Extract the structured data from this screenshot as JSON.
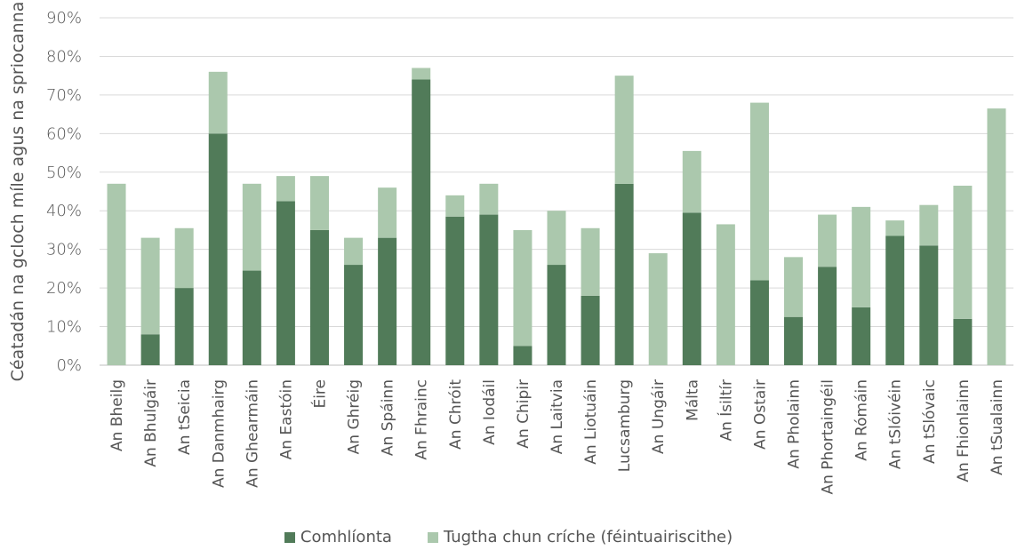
{
  "chart_data": {
    "type": "bar",
    "stacked": true,
    "ylabel": "Céatadán na gcloch míle agus na spriocanna",
    "ylim": [
      0,
      90
    ],
    "yticks": [
      "0%",
      "10%",
      "20%",
      "30%",
      "40%",
      "50%",
      "60%",
      "70%",
      "80%",
      "90%"
    ],
    "grid": true,
    "legend_position": "bottom",
    "categories": [
      "An Bheilg",
      "An Bhulgáir",
      "An tSeicia",
      "An Danmhairg",
      "An Ghearmáin",
      "An Eastóin",
      "Éire",
      "An Ghréig",
      "An Spáinn",
      "An Fhrainc",
      "An Chróit",
      "An Iodáil",
      "An Chipir",
      "An Laitvia",
      "An Liotuáin",
      "Lucsamburg",
      "An Ungáir",
      "Málta",
      "An Ísiltír",
      "An Ostair",
      "An Pholainn",
      "An Phortaingéil",
      "An Rómáin",
      "An tSlóivéin",
      "An tSlóvaic",
      "An Fhionlainn",
      "An tSualainn"
    ],
    "series": [
      {
        "name": "Comhlíonta",
        "color": "#517b59",
        "values": [
          0,
          8,
          20,
          60,
          24.5,
          42.5,
          35,
          26,
          33,
          74,
          38.5,
          39,
          5,
          26,
          18,
          47,
          0,
          39.5,
          0,
          22,
          12.5,
          25.5,
          15,
          33.5,
          31,
          12,
          0
        ]
      },
      {
        "name": "Tugtha chun críche (féintuairiscithe)",
        "color": "#abc8ad",
        "values": [
          47,
          25,
          15.5,
          16,
          22.5,
          6.5,
          14,
          7,
          13,
          3,
          5.5,
          8,
          30,
          14,
          17.5,
          28,
          29,
          16,
          36.5,
          46,
          15.5,
          13.5,
          26,
          4,
          10.5,
          34.5,
          66.5
        ]
      }
    ]
  }
}
